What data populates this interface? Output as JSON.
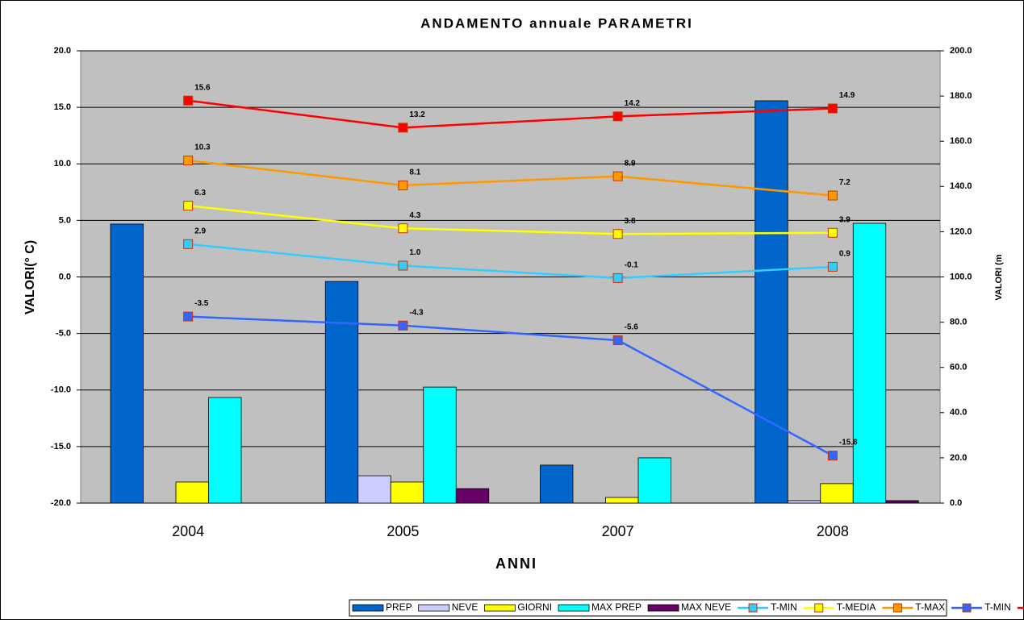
{
  "chart_data": {
    "type": "bar_line",
    "title": "ANDAMENTO annuale PARAMETRI",
    "x_label": "ANNI",
    "y_label": "VALORI(° C)",
    "y2_label": "VALORI (m",
    "categories": [
      "2004",
      "2005",
      "2007",
      "2008"
    ],
    "ylim": [
      -20,
      20
    ],
    "yticks": [
      {
        "value": -20,
        "label": "-20.0"
      },
      {
        "value": -15,
        "label": "-15.0"
      },
      {
        "value": -10,
        "label": "-10.0"
      },
      {
        "value": -5,
        "label": "-5.0"
      },
      {
        "value": 0,
        "label": "0.0"
      },
      {
        "value": 5,
        "label": "5.0"
      },
      {
        "value": 10,
        "label": "10.0"
      },
      {
        "value": 15,
        "label": "15.0"
      },
      {
        "value": 20,
        "label": "20.0"
      }
    ],
    "y2lim": [
      0,
      200
    ],
    "y2ticks": [
      {
        "value": 0,
        "label": "0.0"
      },
      {
        "value": 20,
        "label": "20.0"
      },
      {
        "value": 40,
        "label": "40.0"
      },
      {
        "value": 60,
        "label": "60.0"
      },
      {
        "value": 80,
        "label": "80.0"
      },
      {
        "value": 100,
        "label": "100.0"
      },
      {
        "value": 120,
        "label": "120.0"
      },
      {
        "value": 140,
        "label": "140.0"
      },
      {
        "value": 160,
        "label": "160.0"
      },
      {
        "value": 180,
        "label": "180.0"
      },
      {
        "value": 200,
        "label": "200.0"
      }
    ],
    "grid": true,
    "legend": "bottom",
    "series": [
      {
        "name": "PREP",
        "kind": "bar",
        "axis": "y2",
        "color": "#0066cc",
        "values": [
          123.4,
          98.0,
          16.8,
          177.9
        ]
      },
      {
        "name": "NEVE",
        "kind": "bar",
        "axis": "y2",
        "color": "#ccccff",
        "values": [
          0,
          12.1,
          0,
          1.1
        ]
      },
      {
        "name": "GIORNI",
        "kind": "bar",
        "axis": "y2",
        "color": "#ffff00",
        "values": [
          9.3,
          9.3,
          2.5,
          8.6
        ]
      },
      {
        "name": "MAX PREP",
        "kind": "bar",
        "axis": "y2",
        "color": "#00ffff",
        "values": [
          46.7,
          51.3,
          20.0,
          123.7
        ]
      },
      {
        "name": "MAX NEVE",
        "kind": "bar",
        "axis": "y2",
        "color": "#660066",
        "values": [
          0,
          6.4,
          0,
          1.1
        ]
      },
      {
        "name": "T-MIN",
        "kind": "line",
        "axis": "y",
        "color": "#33ccff",
        "values": [
          2.9,
          1.0,
          -0.1,
          0.9
        ],
        "value_labels": [
          "2.9",
          "1.0",
          "-0.1",
          "0.9"
        ]
      },
      {
        "name": "T-MEDIA",
        "kind": "line",
        "axis": "y",
        "color": "#ffff00",
        "values": [
          6.3,
          4.3,
          3.8,
          3.9
        ],
        "value_labels": [
          "6.3",
          "4.3",
          "3.8",
          "3.9"
        ]
      },
      {
        "name": "T-MAX",
        "kind": "line",
        "axis": "y",
        "color": "#ff9900",
        "values": [
          10.3,
          8.1,
          8.9,
          7.2
        ],
        "value_labels": [
          "10.3",
          "8.1",
          "8.9",
          "7.2"
        ]
      },
      {
        "name": "T-MIN",
        "kind": "line",
        "axis": "y",
        "color": "#3366ff",
        "values": [
          -3.5,
          -4.3,
          -5.6,
          -15.8
        ],
        "value_labels": [
          "-3.5",
          "-4.3",
          "-5.6",
          "-15.8"
        ]
      },
      {
        "name": "T-MAX",
        "kind": "line",
        "axis": "y",
        "color": "#ff0000",
        "values": [
          15.6,
          13.2,
          14.2,
          14.9
        ],
        "value_labels": [
          "15.6",
          "13.2",
          "14.2",
          "14.9"
        ]
      }
    ]
  }
}
